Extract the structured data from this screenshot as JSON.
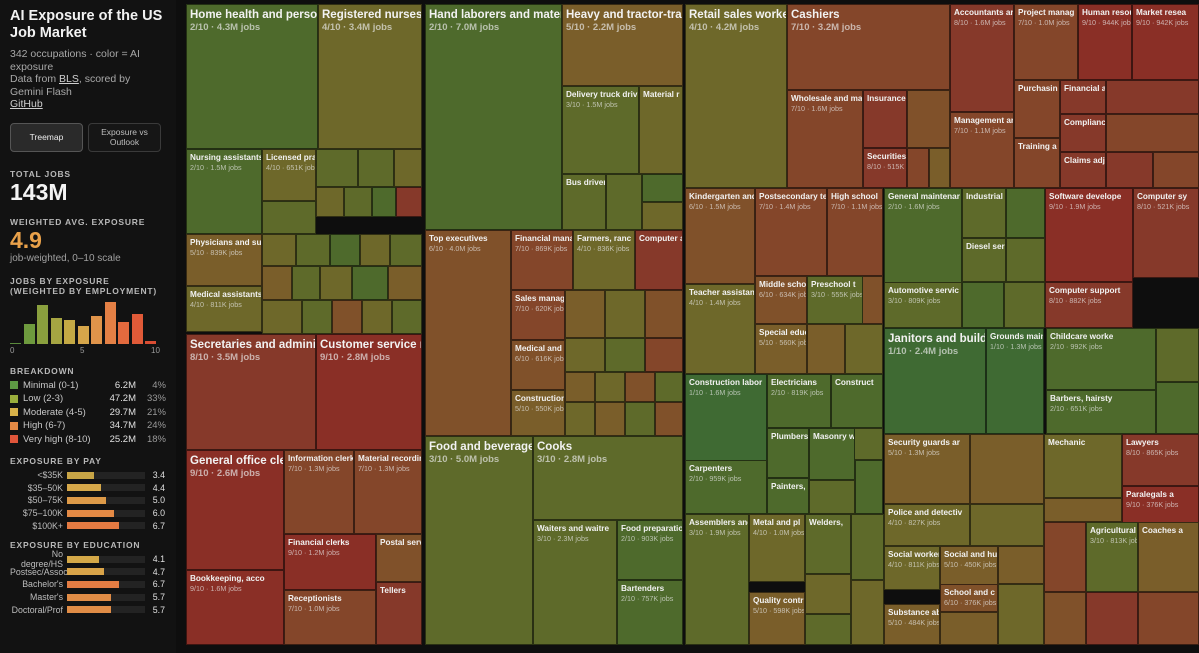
{
  "sidebar": {
    "title": "AI Exposure of the US Job Market",
    "meta": {
      "occupations": "342 occupations · color = AI exposure",
      "data_prefix": "Data from ",
      "data_link": "BLS",
      "data_suffix": ", scored by Gemini Flash",
      "github": "GitHub"
    },
    "buttons": [
      {
        "label": "Treemap",
        "active": true
      },
      {
        "label": "Exposure vs Outlook",
        "active": false
      }
    ],
    "total_jobs": {
      "label": "TOTAL JOBS",
      "value": "143M"
    },
    "avg_exposure": {
      "label": "WEIGHTED AVG. EXPOSURE",
      "value": "4.9",
      "note": "job-weighted, 0–10 scale"
    },
    "histogram": {
      "label": "JOBS BY EXPOSURE (WEIGHTED BY EMPLOYMENT)",
      "ticks": [
        "0",
        "5",
        "10"
      ],
      "bars": [
        {
          "score": 0,
          "level": 0.03,
          "color": "#5a8a3c"
        },
        {
          "score": 1,
          "level": 0.48,
          "color": "#6e9a3e"
        },
        {
          "score": 2,
          "level": 0.94,
          "color": "#8aa03e"
        },
        {
          "score": 3,
          "level": 0.62,
          "color": "#a6a542"
        },
        {
          "score": 4,
          "level": 0.56,
          "color": "#c4a944"
        },
        {
          "score": 5,
          "level": 0.44,
          "color": "#d6a64a"
        },
        {
          "score": 6,
          "level": 0.66,
          "color": "#e0944a"
        },
        {
          "score": 7,
          "level": 0.99,
          "color": "#e48045"
        },
        {
          "score": 8,
          "level": 0.52,
          "color": "#e36a3e"
        },
        {
          "score": 9,
          "level": 0.72,
          "color": "#e05a38"
        },
        {
          "score": 10,
          "level": 0.06,
          "color": "#d94d33"
        }
      ]
    },
    "breakdown": {
      "label": "BREAKDOWN",
      "rows": [
        {
          "name": "Minimal (0-1)",
          "value": "6.2M",
          "pct": "4%",
          "color": "#5d9a44"
        },
        {
          "name": "Low (2-3)",
          "value": "47.2M",
          "pct": "33%",
          "color": "#9aae3c"
        },
        {
          "name": "Moderate (4-5)",
          "value": "29.7M",
          "pct": "21%",
          "color": "#d8b24a"
        },
        {
          "name": "High (6-7)",
          "value": "34.7M",
          "pct": "24%",
          "color": "#e58a45"
        },
        {
          "name": "Very high (8-10)",
          "value": "25.2M",
          "pct": "18%",
          "color": "#e0553a"
        }
      ]
    },
    "pay": {
      "label": "EXPOSURE BY PAY",
      "rows": [
        {
          "label": "<$35K",
          "value": "3.4",
          "level": 0.34,
          "color": "#c8a546"
        },
        {
          "label": "$35–50K",
          "value": "4.4",
          "level": 0.44,
          "color": "#d6a84a"
        },
        {
          "label": "$50–75K",
          "value": "5.0",
          "level": 0.5,
          "color": "#dd9a48"
        },
        {
          "label": "$75–100K",
          "value": "6.0",
          "level": 0.6,
          "color": "#e48a45"
        },
        {
          "label": "$100K+",
          "value": "6.7",
          "level": 0.67,
          "color": "#e47a42"
        }
      ]
    },
    "education": {
      "label": "EXPOSURE BY EDUCATION",
      "rows": [
        {
          "label": "No degree/HS",
          "value": "4.1",
          "level": 0.41,
          "color": "#d4a848"
        },
        {
          "label": "Postsec/Assoc",
          "value": "4.7",
          "level": 0.47,
          "color": "#d9a449"
        },
        {
          "label": "Bachelor's",
          "value": "6.7",
          "level": 0.67,
          "color": "#e47c43"
        },
        {
          "label": "Master's",
          "value": "5.7",
          "level": 0.57,
          "color": "#e08c46"
        },
        {
          "label": "Doctoral/Prof",
          "value": "5.7",
          "level": 0.57,
          "color": "#e08c46"
        }
      ]
    }
  },
  "chart_data": {
    "type": "treemap",
    "title": "AI Exposure of the US Job Market",
    "color_encoding": "AI exposure (0–10)",
    "size_encoding": "jobs",
    "labeled_tiles": [
      {
        "name": "Home health and person",
        "score": "2/10",
        "jobs": "4.3M jobs"
      },
      {
        "name": "Registered nurses",
        "score": "4/10",
        "jobs": "3.4M jobs"
      },
      {
        "name": "Nursing assistants",
        "score": "2/10",
        "jobs": "1.5M jobs"
      },
      {
        "name": "Licensed pra",
        "score": "4/10",
        "jobs": "651K jobs"
      },
      {
        "name": "Physicians and su",
        "score": "5/10",
        "jobs": "839K jobs"
      },
      {
        "name": "Medical assistants",
        "score": "4/10",
        "jobs": "811K jobs"
      },
      {
        "name": "Secretaries and adminis",
        "score": "8/10",
        "jobs": "3.5M jobs"
      },
      {
        "name": "Customer service re",
        "score": "9/10",
        "jobs": "2.8M jobs"
      },
      {
        "name": "General office clerk",
        "score": "9/10",
        "jobs": "2.6M jobs"
      },
      {
        "name": "Information clerk",
        "score": "7/10",
        "jobs": "1.3M jobs"
      },
      {
        "name": "Material recordin",
        "score": "7/10",
        "jobs": "1.3M jobs"
      },
      {
        "name": "Financial clerks",
        "score": "9/10",
        "jobs": "1.2M jobs"
      },
      {
        "name": "Postal serv",
        "score": "",
        "jobs": ""
      },
      {
        "name": "Bookkeeping, acco",
        "score": "9/10",
        "jobs": "1.6M jobs"
      },
      {
        "name": "Receptionists",
        "score": "7/10",
        "jobs": "1.0M jobs"
      },
      {
        "name": "Tellers",
        "score": "",
        "jobs": ""
      },
      {
        "name": "Hand laborers and materi",
        "score": "2/10",
        "jobs": "7.0M jobs"
      },
      {
        "name": "Heavy and tractor-trai",
        "score": "5/10",
        "jobs": "2.2M jobs"
      },
      {
        "name": "Delivery truck driv",
        "score": "3/10",
        "jobs": "1.5M jobs"
      },
      {
        "name": "Material r",
        "score": "",
        "jobs": ""
      },
      {
        "name": "Bus driver",
        "score": "",
        "jobs": ""
      },
      {
        "name": "Top executives",
        "score": "6/10",
        "jobs": "4.0M jobs"
      },
      {
        "name": "Financial mana",
        "score": "7/10",
        "jobs": "869K jobs"
      },
      {
        "name": "Farmers, ranc",
        "score": "4/10",
        "jobs": "836K jobs"
      },
      {
        "name": "Computer a",
        "score": "",
        "jobs": ""
      },
      {
        "name": "Sales manag",
        "score": "7/10",
        "jobs": "620K jobs"
      },
      {
        "name": "Medical and",
        "score": "6/10",
        "jobs": "616K jobs"
      },
      {
        "name": "Construction",
        "score": "5/10",
        "jobs": "550K jobs"
      },
      {
        "name": "Food and beverage",
        "score": "3/10",
        "jobs": "5.0M jobs"
      },
      {
        "name": "Cooks",
        "score": "3/10",
        "jobs": "2.8M jobs"
      },
      {
        "name": "Waiters and waitre",
        "score": "3/10",
        "jobs": "2.3M jobs"
      },
      {
        "name": "Food preparatio",
        "score": "2/10",
        "jobs": "903K jobs"
      },
      {
        "name": "Bartenders",
        "score": "2/10",
        "jobs": "757K jobs"
      },
      {
        "name": "Retail sales workers",
        "score": "4/10",
        "jobs": "4.2M jobs"
      },
      {
        "name": "Cashiers",
        "score": "7/10",
        "jobs": "3.2M jobs"
      },
      {
        "name": "Wholesale and ma",
        "score": "7/10",
        "jobs": "1.6M jobs"
      },
      {
        "name": "Insurance",
        "score": "",
        "jobs": ""
      },
      {
        "name": "Securities, co",
        "score": "8/10",
        "jobs": "515K jobs"
      },
      {
        "name": "Kindergarten and",
        "score": "6/10",
        "jobs": "1.5M jobs"
      },
      {
        "name": "Postsecondary te",
        "score": "7/10",
        "jobs": "1.4M jobs"
      },
      {
        "name": "High school",
        "score": "7/10",
        "jobs": "1.1M jobs"
      },
      {
        "name": "Teacher assistan",
        "score": "4/10",
        "jobs": "1.4M jobs"
      },
      {
        "name": "Middle scho",
        "score": "6/10",
        "jobs": "634K jobs"
      },
      {
        "name": "Preschool t",
        "score": "3/10",
        "jobs": "555K jobs"
      },
      {
        "name": "Special educ",
        "score": "5/10",
        "jobs": "560K jobs"
      },
      {
        "name": "Construction labor",
        "score": "1/10",
        "jobs": "1.6M jobs"
      },
      {
        "name": "Electricians",
        "score": "2/10",
        "jobs": "819K jobs"
      },
      {
        "name": "Construct",
        "score": "",
        "jobs": ""
      },
      {
        "name": "Plumbers",
        "score": "",
        "jobs": ""
      },
      {
        "name": "Masonry w",
        "score": "",
        "jobs": ""
      },
      {
        "name": "Painters,",
        "score": "",
        "jobs": ""
      },
      {
        "name": "Carpenters",
        "score": "2/10",
        "jobs": "959K jobs"
      },
      {
        "name": "Assemblers and",
        "score": "3/10",
        "jobs": "1.9M jobs"
      },
      {
        "name": "Metal and pl",
        "score": "4/10",
        "jobs": "1.0M jobs"
      },
      {
        "name": "Welders,",
        "score": "",
        "jobs": ""
      },
      {
        "name": "Quality contr",
        "score": "5/10",
        "jobs": "598K jobs"
      },
      {
        "name": "Accountants ar",
        "score": "8/10",
        "jobs": "1.6M jobs"
      },
      {
        "name": "Project manag",
        "score": "7/10",
        "jobs": "1.0M jobs"
      },
      {
        "name": "Human resou",
        "score": "9/10",
        "jobs": "944K jobs"
      },
      {
        "name": "Market resea",
        "score": "9/10",
        "jobs": "942K jobs"
      },
      {
        "name": "Purchasin",
        "score": "",
        "jobs": ""
      },
      {
        "name": "Financial ar",
        "score": "",
        "jobs": ""
      },
      {
        "name": "Management ar",
        "score": "7/10",
        "jobs": "1.1M jobs"
      },
      {
        "name": "Compliance",
        "score": "",
        "jobs": ""
      },
      {
        "name": "Training a",
        "score": "",
        "jobs": ""
      },
      {
        "name": "Claims adju",
        "score": "",
        "jobs": ""
      },
      {
        "name": "General maintenar",
        "score": "2/10",
        "jobs": "1.6M jobs"
      },
      {
        "name": "Industrial",
        "score": "",
        "jobs": ""
      },
      {
        "name": "Diesel ser",
        "score": "",
        "jobs": ""
      },
      {
        "name": "Automotive servic",
        "score": "3/10",
        "jobs": "809K jobs"
      },
      {
        "name": "Janitors and buildin",
        "score": "1/10",
        "jobs": "2.4M jobs"
      },
      {
        "name": "Grounds main",
        "score": "1/10",
        "jobs": "1.3M jobs"
      },
      {
        "name": "Software develope",
        "score": "9/10",
        "jobs": "1.9M jobs"
      },
      {
        "name": "Computer sy",
        "score": "8/10",
        "jobs": "521K jobs"
      },
      {
        "name": "Computer support",
        "score": "8/10",
        "jobs": "882K jobs"
      },
      {
        "name": "Childcare worke",
        "score": "2/10",
        "jobs": "992K jobs"
      },
      {
        "name": "Barbers, hairsty",
        "score": "2/10",
        "jobs": "651K jobs"
      },
      {
        "name": "Security guards ar",
        "score": "5/10",
        "jobs": "1.3M jobs"
      },
      {
        "name": "Police and detectiv",
        "score": "4/10",
        "jobs": "827K jobs"
      },
      {
        "name": "Mechanic",
        "score": "",
        "jobs": ""
      },
      {
        "name": "Lawyers",
        "score": "8/10",
        "jobs": "865K jobs"
      },
      {
        "name": "Paralegals a",
        "score": "9/10",
        "jobs": "376K jobs"
      },
      {
        "name": "Social worker",
        "score": "4/10",
        "jobs": "811K jobs"
      },
      {
        "name": "Social and hu",
        "score": "5/10",
        "jobs": "450K jobs"
      },
      {
        "name": "School and c",
        "score": "6/10",
        "jobs": "376K jobs"
      },
      {
        "name": "Substance ab",
        "score": "5/10",
        "jobs": "484K jobs"
      },
      {
        "name": "Agricultural",
        "score": "3/10",
        "jobs": "813K jobs"
      },
      {
        "name": "Coaches a",
        "score": "",
        "jobs": ""
      }
    ]
  }
}
